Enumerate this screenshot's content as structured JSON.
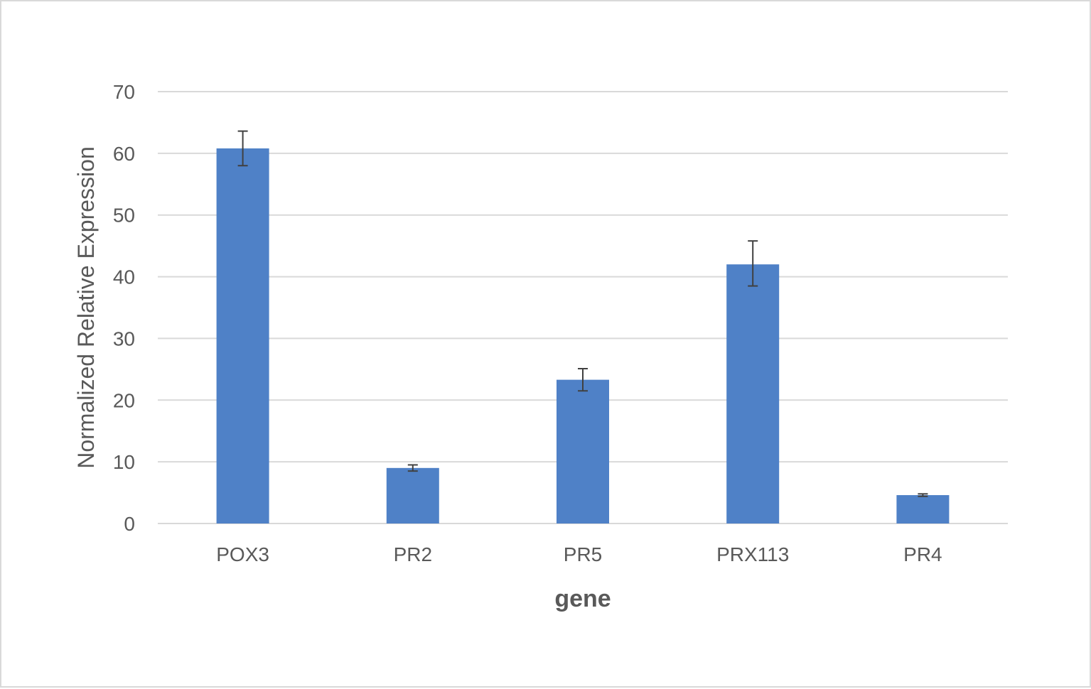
{
  "chart_data": {
    "type": "bar",
    "categories": [
      "POX3",
      "PR2",
      "PR5",
      "PRX113",
      "PR4"
    ],
    "values": [
      60.8,
      9.0,
      23.3,
      42.0,
      4.6
    ],
    "error_low": [
      2.8,
      0.5,
      1.8,
      3.5,
      0.2
    ],
    "error_high": [
      2.8,
      0.5,
      1.8,
      3.8,
      0.2
    ],
    "xlabel": "gene",
    "ylabel": "Normalized Relative Expression",
    "ylim": [
      0,
      70
    ],
    "yticks": [
      "0",
      "10",
      "20",
      "30",
      "40",
      "50",
      "60",
      "70"
    ],
    "grid": true,
    "legend": "none",
    "bar_color": "#4f81c7",
    "grid_color": "#d9d9d9",
    "errorbar_color": "#404040"
  }
}
